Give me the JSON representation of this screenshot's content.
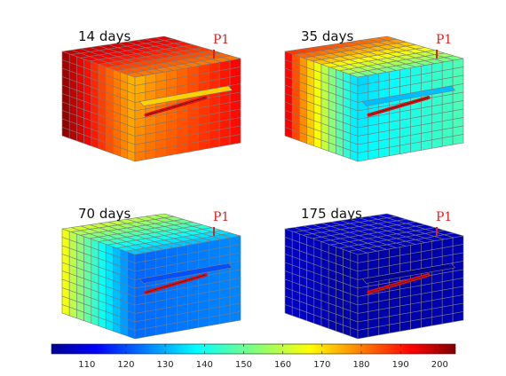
{
  "colors": {
    "probe": "#e02020",
    "edge": "#7a7a7a",
    "slot": "#e01010"
  },
  "colormap": {
    "name": "jet",
    "min": 101,
    "max": 204,
    "ticks": [
      "110",
      "120",
      "130",
      "140",
      "150",
      "160",
      "170",
      "180",
      "190",
      "200"
    ]
  },
  "panels": [
    {
      "label": "14 days",
      "probe": "P1",
      "temperatures": {
        "left_outer": 203,
        "right_outer": 192,
        "core": 172,
        "top_back": 194,
        "top_front": 178,
        "bottom": 188
      }
    },
    {
      "label": "35 days",
      "probe": "P1",
      "temperatures": {
        "left_outer": 196,
        "right_outer": 148,
        "core": 135,
        "top_back": 180,
        "top_front": 150,
        "bottom": 145
      }
    },
    {
      "label": "70 days",
      "probe": "P1",
      "temperatures": {
        "left_outer": 168,
        "right_outer": 128,
        "core": 124,
        "top_back": 158,
        "top_front": 132,
        "bottom": 126
      }
    },
    {
      "label": "175 days",
      "probe": "P1",
      "temperatures": {
        "left_outer": 108,
        "right_outer": 106,
        "core": 105,
        "top_back": 110,
        "top_front": 107,
        "bottom": 106
      }
    }
  ]
}
